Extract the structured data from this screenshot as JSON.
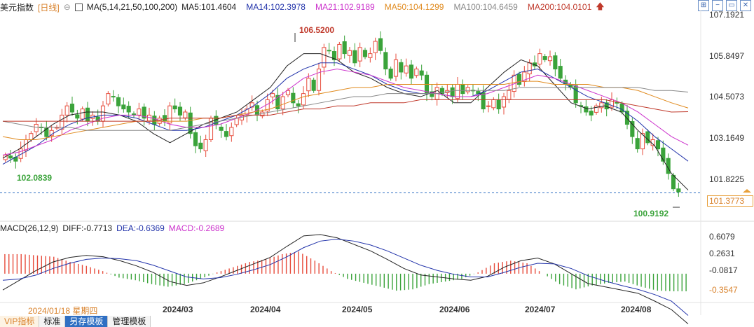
{
  "legend": {
    "title": "美元指数",
    "period": "[日线]",
    "ma_label": "MA(5,14,21,50,100,200)",
    "items": [
      {
        "text": "MA5:101.4604",
        "color": "#222222"
      },
      {
        "text": "MA14:102.3978",
        "color": "#2233aa"
      },
      {
        "text": "MA21:102.9189",
        "color": "#cc33cc"
      },
      {
        "text": "MA50:104.1299",
        "color": "#e08a1e"
      },
      {
        "text": "MA100:104.6459",
        "color": "#888888"
      },
      {
        "text": "MA200:104.0101",
        "color": "#c0392b"
      }
    ]
  },
  "macd_legend": {
    "label": "MACD(26,12,9)",
    "diff": "DIFF:-0.7713",
    "dea": "DEA:-0.6369",
    "macd": "MACD:-0.2689"
  },
  "price_axis": [
    "107.1921",
    "105.8497",
    "104.5073",
    "103.1649",
    "101.8225"
  ],
  "current_price": "101.3773",
  "macd_axis": [
    "0.6079",
    "0.2631",
    "-0.0817",
    "-0.3547"
  ],
  "x_axis": [
    "2024/03",
    "2024/04",
    "2024/05",
    "2024/06",
    "2024/07",
    "2024/08"
  ],
  "hover_date": "2024/01/18 星期四",
  "annotations": {
    "high": "106.5200",
    "low_left": "102.0839",
    "low_right": "100.9192"
  },
  "toolbar": [
    "VIP指标",
    "标准",
    "另存模板",
    "管理模板"
  ],
  "colors": {
    "up": "#e74c3c",
    "down": "#3aa33a",
    "ma5": "#222222",
    "ma14": "#2233aa",
    "ma21": "#cc33cc",
    "ma50": "#e08a1e",
    "ma100": "#888888",
    "ma200": "#c0392b",
    "current_line": "#2f6fc3"
  },
  "chart_data": [
    {
      "type": "candlestick",
      "title": "美元指数",
      "ylim": [
        100.9,
        107.19
      ],
      "x_ticks": [
        "2024/03",
        "2024/04",
        "2024/05",
        "2024/06",
        "2024/07",
        "2024/08"
      ],
      "closes": [
        102.6,
        102.5,
        102.4,
        102.8,
        103.1,
        103.3,
        103.6,
        103.5,
        103.2,
        103.4,
        103.5,
        103.9,
        104.2,
        104.0,
        103.8,
        104.1,
        103.7,
        103.9,
        103.7,
        104.2,
        104.6,
        104.5,
        104.2,
        104.1,
        104.0,
        103.9,
        104.1,
        103.8,
        103.9,
        103.6,
        103.8,
        103.7,
        104.2,
        104.1,
        103.9,
        104.0,
        103.3,
        102.9,
        102.8,
        103.1,
        103.8,
        103.6,
        103.4,
        103.2,
        103.5,
        103.8,
        103.9,
        104.1,
        104.3,
        103.9,
        104.0,
        104.4,
        104.6,
        104.1,
        104.5,
        104.7,
        104.3,
        104.2,
        104.6,
        105.1,
        104.7,
        105.4,
        106.1,
        106.0,
        105.7,
        106.2,
        105.9,
        106.0,
        105.6,
        106.1,
        105.8,
        105.9,
        106.3,
        106.0,
        105.4,
        105.1,
        105.7,
        105.3,
        105.5,
        105.1,
        105.4,
        105.2,
        104.6,
        104.5,
        104.8,
        104.6,
        104.7,
        104.5,
        104.9,
        104.6,
        104.8,
        104.7,
        104.6,
        104.1,
        104.2,
        104.4,
        104.1,
        104.5,
        104.7,
        105.2,
        104.9,
        105.3,
        105.6,
        105.5,
        105.9,
        105.7,
        105.8,
        105.4,
        105.1,
        104.9,
        104.8,
        104.3,
        104.2,
        104.0,
        103.9,
        104.2,
        104.3,
        104.1,
        104.4,
        104.3,
        104.0,
        103.6,
        103.2,
        102.8,
        103.3,
        103.0,
        103.1,
        102.8,
        102.4,
        102.0,
        101.5,
        101.4
      ],
      "high": 106.52,
      "low": 100.9192,
      "current": 101.3773,
      "ma_series": [
        {
          "name": "MA5",
          "values": [
            102.5,
            102.8,
            103.2,
            103.6,
            103.9,
            104.0,
            104.0,
            103.9,
            103.7,
            103.3,
            103.0,
            103.3,
            103.6,
            103.8,
            104.0,
            104.4,
            104.8,
            105.5,
            105.9,
            105.9,
            105.7,
            105.3,
            105.1,
            104.8,
            104.6,
            104.5,
            104.7,
            104.3,
            104.3,
            104.8,
            105.3,
            105.7,
            105.5,
            104.9,
            104.3,
            104.1,
            104.2,
            104.0,
            103.4,
            102.9,
            102.0,
            101.46
          ]
        },
        {
          "name": "MA14",
          "values": [
            102.3,
            102.6,
            102.9,
            103.3,
            103.6,
            103.8,
            103.9,
            103.9,
            103.8,
            103.6,
            103.4,
            103.4,
            103.5,
            103.7,
            103.9,
            104.2,
            104.6,
            105.1,
            105.4,
            105.6,
            105.6,
            105.4,
            105.2,
            104.9,
            104.7,
            104.6,
            104.6,
            104.5,
            104.5,
            104.7,
            105.0,
            105.3,
            105.4,
            105.1,
            104.8,
            104.5,
            104.3,
            104.1,
            103.7,
            103.2,
            102.8,
            102.4
          ]
        },
        {
          "name": "MA21",
          "values": [
            102.6,
            102.7,
            102.9,
            103.1,
            103.4,
            103.6,
            103.8,
            103.9,
            103.9,
            103.8,
            103.6,
            103.5,
            103.5,
            103.6,
            103.8,
            104.0,
            104.3,
            104.7,
            105.1,
            105.3,
            105.4,
            105.3,
            105.2,
            105.0,
            104.8,
            104.7,
            104.6,
            104.5,
            104.5,
            104.6,
            104.8,
            105.0,
            105.2,
            105.1,
            104.9,
            104.7,
            104.5,
            104.3,
            104.0,
            103.6,
            103.2,
            102.92
          ]
        },
        {
          "name": "MA50",
          "values": [
            103.2,
            103.1,
            103.1,
            103.2,
            103.3,
            103.4,
            103.5,
            103.6,
            103.7,
            103.7,
            103.7,
            103.7,
            103.8,
            103.8,
            103.9,
            104.0,
            104.1,
            104.3,
            104.5,
            104.6,
            104.7,
            104.8,
            104.8,
            104.9,
            104.9,
            104.9,
            104.9,
            104.9,
            104.9,
            104.9,
            104.9,
            105.0,
            105.0,
            104.9,
            104.9,
            104.9,
            104.8,
            104.8,
            104.7,
            104.5,
            104.3,
            104.13
          ]
        },
        {
          "name": "MA100",
          "values": [
            103.7,
            103.6,
            103.5,
            103.5,
            103.5,
            103.4,
            103.4,
            103.4,
            103.4,
            103.4,
            103.4,
            103.5,
            103.6,
            103.7,
            103.8,
            103.9,
            104.0,
            104.1,
            104.2,
            104.3,
            104.4,
            104.5,
            104.5,
            104.6,
            104.6,
            104.6,
            104.6,
            104.7,
            104.7,
            104.7,
            104.7,
            104.8,
            104.8,
            104.8,
            104.8,
            104.8,
            104.8,
            104.8,
            104.8,
            104.7,
            104.7,
            104.65
          ]
        },
        {
          "name": "MA200",
          "values": [
            103.7,
            103.7,
            103.7,
            103.7,
            103.7,
            103.7,
            103.7,
            103.7,
            103.7,
            103.7,
            103.8,
            103.8,
            103.8,
            103.8,
            103.9,
            103.9,
            103.9,
            104.0,
            104.1,
            104.1,
            104.2,
            104.2,
            104.3,
            104.3,
            104.3,
            104.4,
            104.4,
            104.4,
            104.4,
            104.4,
            104.4,
            104.4,
            104.4,
            104.4,
            104.4,
            104.4,
            104.4,
            104.3,
            104.2,
            104.1,
            104.0,
            104.01
          ]
        }
      ]
    },
    {
      "type": "macd",
      "title": "MACD(26,12,9)",
      "ylim": [
        -0.45,
        0.65
      ],
      "diff": [
        -0.25,
        -0.1,
        0.05,
        0.18,
        0.25,
        0.28,
        0.26,
        0.2,
        0.12,
        0.02,
        -0.12,
        -0.18,
        -0.14,
        -0.05,
        0.05,
        0.15,
        0.25,
        0.42,
        0.58,
        0.6,
        0.55,
        0.45,
        0.35,
        0.22,
        0.08,
        -0.02,
        -0.05,
        -0.08,
        -0.1,
        -0.04,
        0.1,
        0.2,
        0.24,
        0.15,
        0.0,
        -0.15,
        -0.2,
        -0.25,
        -0.3,
        -0.42,
        -0.55,
        -0.77
      ],
      "dea": [
        -0.1,
        -0.08,
        -0.02,
        0.08,
        0.16,
        0.22,
        0.24,
        0.23,
        0.2,
        0.13,
        0.04,
        -0.05,
        -0.08,
        -0.06,
        -0.01,
        0.06,
        0.14,
        0.26,
        0.4,
        0.5,
        0.53,
        0.5,
        0.44,
        0.35,
        0.24,
        0.13,
        0.05,
        -0.01,
        -0.05,
        -0.05,
        0.02,
        0.1,
        0.16,
        0.15,
        0.08,
        -0.03,
        -0.11,
        -0.18,
        -0.24,
        -0.32,
        -0.42,
        -0.64
      ],
      "hist": [
        0.3,
        0.3,
        0.28,
        0.26,
        0.18,
        0.12,
        0.04,
        -0.06,
        -0.1,
        -0.16,
        -0.2,
        -0.16,
        -0.08,
        0.02,
        0.1,
        0.18,
        0.22,
        0.3,
        0.34,
        0.2,
        0.04,
        -0.08,
        -0.14,
        -0.2,
        -0.26,
        -0.24,
        -0.16,
        -0.12,
        -0.08,
        0.02,
        0.16,
        0.2,
        0.16,
        0.0,
        -0.16,
        -0.24,
        -0.18,
        -0.14,
        -0.12,
        -0.2,
        -0.26,
        -0.27
      ]
    }
  ]
}
